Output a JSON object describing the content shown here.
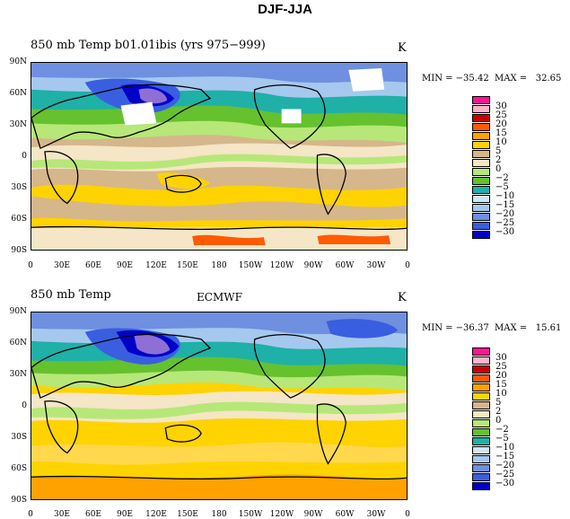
{
  "title": "DJF-JJA",
  "colors": [
    "#8e6fd4",
    "#0000c8",
    "#3a5ee0",
    "#6f8fe0",
    "#a6c8ee",
    "#cfe8f4",
    "#1fb0a8",
    "#66c12e",
    "#b7e778",
    "#f4e6c6",
    "#d6b68b",
    "#fed300",
    "#ffa200",
    "#ff5a00",
    "#c80000",
    "#ffb3c8",
    "#ff1493"
  ],
  "panels": [
    {
      "title": "850 mb Temp b01.01ibis (yrs 975−999)",
      "center": "",
      "unit": "K",
      "minmax": "MIN = −35.42  MAX =   32.65"
    },
    {
      "title": "850 mb Temp",
      "center": "ECMWF",
      "unit": "K",
      "minmax": "MIN = −36.37  MAX =   15.61"
    }
  ],
  "lat_labels": [
    "90N",
    "60N",
    "30N",
    "0",
    "30S",
    "60S",
    "90S"
  ],
  "lon_labels": [
    "0",
    "30E",
    "60E",
    "90E",
    "120E",
    "150E",
    "180",
    "150W",
    "120W",
    "90W",
    "60W",
    "30W",
    "0"
  ],
  "legend_labels": [
    "−30",
    "−25",
    "−20",
    "−15",
    "−10",
    "−5",
    "−2",
    "0",
    "2",
    "5",
    "10",
    "15",
    "20",
    "25",
    "30"
  ]
}
